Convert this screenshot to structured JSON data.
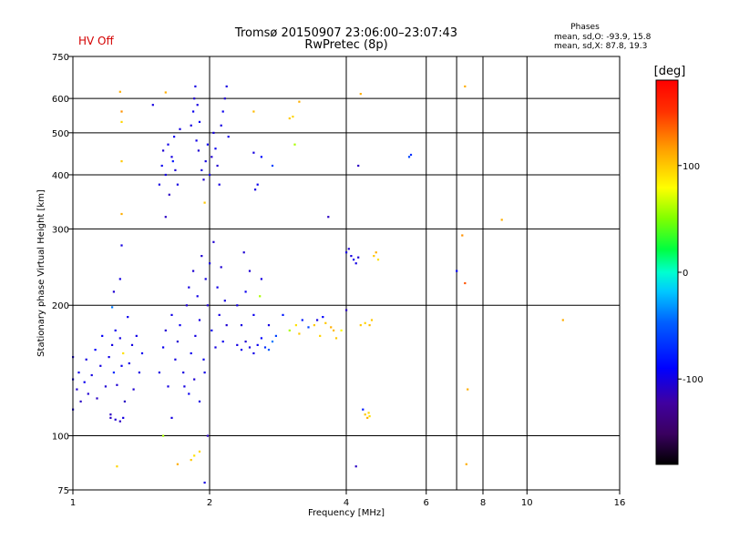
{
  "status": {
    "text": "HV Off",
    "color": "#d40000"
  },
  "header": {
    "title_line1": "Tromsø 20150907 23:06:00–23:07:43",
    "title_line2": "RwPretec (8p)"
  },
  "stats": {
    "heading": "Phases",
    "line_o": "mean, sd,O:  -93.9, 15.8",
    "line_x": "mean, sd,X:  87.8, 19.3"
  },
  "colorbar": {
    "label": "[deg]",
    "range": [
      -180,
      180
    ],
    "ticks": [
      {
        "value": 100,
        "label": "100"
      },
      {
        "value": 0,
        "label": "0"
      },
      {
        "value": -100,
        "label": "-100"
      }
    ]
  },
  "chart_data": {
    "type": "scatter",
    "xlabel": "Frequency [MHz]",
    "ylabel": "Stationary phase Virtual Height [km]",
    "x_scale": "log",
    "y_scale": "log",
    "xlim": [
      1,
      16
    ],
    "ylim": [
      75,
      750
    ],
    "x_ticks": [
      {
        "value": 1,
        "label": "1"
      },
      {
        "value": 2,
        "label": "2"
      },
      {
        "value": 4,
        "label": "4"
      },
      {
        "value": 6,
        "label": "6"
      },
      {
        "value": 8,
        "label": "8"
      },
      {
        "value": 10,
        "label": "10"
      },
      {
        "value": 16,
        "label": "16"
      }
    ],
    "x_grid": [
      2,
      4,
      6,
      7,
      8,
      10
    ],
    "y_ticks": [
      {
        "value": 75,
        "label": "75"
      },
      {
        "value": 100,
        "label": "100"
      },
      {
        "value": 200,
        "label": "200"
      },
      {
        "value": 300,
        "label": "300"
      },
      {
        "value": 400,
        "label": "400"
      },
      {
        "value": 500,
        "label": "500"
      },
      {
        "value": 600,
        "label": "600"
      },
      {
        "value": 750,
        "label": "750"
      }
    ],
    "y_grid": [
      100,
      200,
      300,
      400,
      500,
      600
    ],
    "points": [
      [
        1.0,
        115,
        -100
      ],
      [
        1.0,
        135,
        -100
      ],
      [
        1.0,
        152,
        -100
      ],
      [
        1.02,
        128,
        -105
      ],
      [
        1.03,
        140,
        -98
      ],
      [
        1.04,
        120,
        -110
      ],
      [
        1.06,
        133,
        -95
      ],
      [
        1.07,
        150,
        -100
      ],
      [
        1.08,
        125,
        -105
      ],
      [
        1.1,
        138,
        -100
      ],
      [
        1.12,
        158,
        -90
      ],
      [
        1.13,
        122,
        -110
      ],
      [
        1.15,
        145,
        -100
      ],
      [
        1.16,
        170,
        -92
      ],
      [
        1.18,
        130,
        -105
      ],
      [
        1.2,
        152,
        -98
      ],
      [
        1.21,
        112,
        -110
      ],
      [
        1.22,
        162,
        -100
      ],
      [
        1.23,
        140,
        -70
      ],
      [
        1.24,
        175,
        -95
      ],
      [
        1.25,
        131,
        -105
      ],
      [
        1.27,
        168,
        -100
      ],
      [
        1.28,
        145,
        -95
      ],
      [
        1.29,
        155,
        90
      ],
      [
        1.3,
        120,
        -110
      ],
      [
        1.32,
        188,
        -95
      ],
      [
        1.33,
        147,
        -100
      ],
      [
        1.35,
        162,
        -100
      ],
      [
        1.36,
        128,
        -105
      ],
      [
        1.38,
        170,
        -98
      ],
      [
        1.4,
        140,
        -100
      ],
      [
        1.42,
        155,
        -95
      ],
      [
        1.21,
        110,
        -110
      ],
      [
        1.24,
        109,
        -105
      ],
      [
        1.27,
        108,
        -110
      ],
      [
        1.29,
        110,
        -100
      ],
      [
        1.22,
        198,
        -40
      ],
      [
        1.23,
        215,
        -105
      ],
      [
        1.27,
        230,
        -100
      ],
      [
        1.28,
        275,
        -100
      ],
      [
        1.25,
        85,
        95
      ],
      [
        1.27,
        622,
        110
      ],
      [
        1.28,
        560,
        120
      ],
      [
        1.28,
        530,
        95
      ],
      [
        1.28,
        430,
        100
      ],
      [
        1.28,
        325,
        110
      ],
      [
        1.55,
        380,
        -100
      ],
      [
        1.57,
        420,
        -95
      ],
      [
        1.58,
        455,
        -105
      ],
      [
        1.6,
        400,
        -100
      ],
      [
        1.62,
        470,
        -98
      ],
      [
        1.63,
        360,
        -110
      ],
      [
        1.65,
        440,
        -100
      ],
      [
        1.67,
        490,
        -95
      ],
      [
        1.68,
        410,
        -105
      ],
      [
        1.7,
        380,
        -100
      ],
      [
        1.72,
        510,
        -100
      ],
      [
        1.66,
        430,
        -80
      ],
      [
        1.82,
        520,
        -100
      ],
      [
        1.84,
        560,
        -95
      ],
      [
        1.85,
        600,
        -105
      ],
      [
        1.86,
        640,
        -100
      ],
      [
        1.87,
        480,
        -98
      ],
      [
        1.88,
        580,
        -100
      ],
      [
        1.89,
        455,
        -105
      ],
      [
        1.9,
        530,
        -95
      ],
      [
        1.92,
        410,
        -100
      ],
      [
        1.94,
        390,
        -105
      ],
      [
        1.96,
        430,
        -100
      ],
      [
        1.98,
        470,
        -95
      ],
      [
        2.0,
        400,
        -100
      ],
      [
        2.02,
        440,
        -105
      ],
      [
        2.04,
        500,
        -100
      ],
      [
        2.06,
        460,
        -95
      ],
      [
        2.08,
        420,
        -105
      ],
      [
        2.1,
        380,
        -100
      ],
      [
        2.12,
        520,
        -100
      ],
      [
        2.14,
        560,
        -95
      ],
      [
        2.16,
        600,
        -105
      ],
      [
        2.18,
        640,
        -100
      ],
      [
        2.2,
        490,
        -98
      ],
      [
        2.52,
        370,
        -100
      ],
      [
        2.55,
        380,
        -95
      ],
      [
        2.5,
        450,
        -100
      ],
      [
        2.6,
        440,
        -85
      ],
      [
        2.75,
        420,
        -60
      ],
      [
        3.05,
        545,
        95
      ],
      [
        3.08,
        470,
        60
      ],
      [
        3.15,
        590,
        110
      ],
      [
        3.0,
        540,
        100
      ],
      [
        2.5,
        560,
        105
      ],
      [
        1.95,
        345,
        100
      ],
      [
        1.55,
        140,
        -100
      ],
      [
        1.58,
        160,
        -95
      ],
      [
        1.6,
        175,
        -105
      ],
      [
        1.62,
        130,
        -100
      ],
      [
        1.65,
        190,
        -98
      ],
      [
        1.68,
        150,
        -100
      ],
      [
        1.7,
        165,
        -105
      ],
      [
        1.72,
        180,
        -95
      ],
      [
        1.75,
        140,
        -100
      ],
      [
        1.78,
        200,
        -105
      ],
      [
        1.8,
        220,
        -100
      ],
      [
        1.82,
        155,
        -95
      ],
      [
        1.84,
        240,
        -105
      ],
      [
        1.86,
        170,
        -100
      ],
      [
        1.88,
        210,
        -98
      ],
      [
        1.9,
        185,
        -100
      ],
      [
        1.92,
        260,
        -105
      ],
      [
        1.94,
        150,
        -95
      ],
      [
        1.96,
        230,
        -100
      ],
      [
        1.98,
        200,
        -105
      ],
      [
        2.0,
        250,
        -100
      ],
      [
        2.02,
        175,
        -95
      ],
      [
        2.04,
        280,
        -105
      ],
      [
        2.06,
        160,
        -100
      ],
      [
        2.08,
        220,
        -98
      ],
      [
        2.1,
        190,
        -100
      ],
      [
        2.12,
        245,
        -105
      ],
      [
        2.14,
        165,
        -95
      ],
      [
        2.16,
        205,
        -100
      ],
      [
        2.18,
        180,
        -105
      ],
      [
        1.76,
        130,
        -100
      ],
      [
        1.8,
        125,
        -95
      ],
      [
        1.85,
        135,
        -105
      ],
      [
        1.9,
        120,
        -100
      ],
      [
        1.95,
        140,
        -98
      ],
      [
        2.3,
        162,
        -100
      ],
      [
        2.35,
        158,
        -95
      ],
      [
        2.4,
        165,
        -105
      ],
      [
        2.45,
        160,
        -100
      ],
      [
        2.5,
        155,
        -98
      ],
      [
        2.55,
        162,
        -95
      ],
      [
        2.6,
        168,
        -90
      ],
      [
        2.65,
        160,
        -70
      ],
      [
        2.7,
        158,
        -50
      ],
      [
        2.75,
        165,
        -40
      ],
      [
        2.8,
        170,
        -60
      ],
      [
        2.3,
        200,
        -100
      ],
      [
        2.4,
        215,
        -95
      ],
      [
        2.45,
        240,
        -105
      ],
      [
        2.6,
        230,
        -100
      ],
      [
        2.58,
        210,
        60
      ],
      [
        2.35,
        180,
        -100
      ],
      [
        2.38,
        265,
        -105
      ],
      [
        2.5,
        190,
        -95
      ],
      [
        2.7,
        180,
        -100
      ],
      [
        2.9,
        190,
        -80
      ],
      [
        3.0,
        175,
        60
      ],
      [
        3.1,
        180,
        90
      ],
      [
        3.15,
        172,
        100
      ],
      [
        3.2,
        185,
        -80
      ],
      [
        3.3,
        178,
        -60
      ],
      [
        3.4,
        180,
        100
      ],
      [
        3.45,
        185,
        -100
      ],
      [
        3.5,
        170,
        95
      ],
      [
        3.55,
        188,
        -90
      ],
      [
        3.6,
        182,
        100
      ],
      [
        3.7,
        178,
        110
      ],
      [
        3.75,
        175,
        105
      ],
      [
        3.8,
        168,
        100
      ],
      [
        3.9,
        175,
        80
      ],
      [
        4.0,
        265,
        -100
      ],
      [
        4.05,
        270,
        -105
      ],
      [
        4.1,
        260,
        -100
      ],
      [
        4.15,
        255,
        -95
      ],
      [
        4.2,
        250,
        -100
      ],
      [
        4.25,
        258,
        -105
      ],
      [
        4.0,
        195,
        -110
      ],
      [
        4.6,
        260,
        100
      ],
      [
        4.65,
        265,
        110
      ],
      [
        4.7,
        255,
        90
      ],
      [
        4.3,
        180,
        100
      ],
      [
        4.4,
        182,
        95
      ],
      [
        4.5,
        180,
        105
      ],
      [
        4.55,
        185,
        100
      ],
      [
        4.35,
        115,
        -80
      ],
      [
        4.4,
        112,
        100
      ],
      [
        4.45,
        110,
        110
      ],
      [
        4.48,
        113,
        95
      ],
      [
        4.5,
        111,
        90
      ],
      [
        4.2,
        85,
        -110
      ],
      [
        5.5,
        440,
        -60
      ],
      [
        5.55,
        445,
        -70
      ],
      [
        3.65,
        320,
        -110
      ],
      [
        4.25,
        420,
        -110
      ],
      [
        4.3,
        615,
        110
      ],
      [
        7.0,
        240,
        -90
      ],
      [
        7.2,
        290,
        120
      ],
      [
        7.3,
        225,
        140
      ],
      [
        7.4,
        128,
        110
      ],
      [
        7.35,
        86,
        110
      ],
      [
        7.3,
        640,
        110
      ],
      [
        8.8,
        315,
        110
      ],
      [
        12.0,
        185,
        110
      ],
      [
        1.5,
        580,
        -100
      ],
      [
        1.6,
        620,
        110
      ],
      [
        1.58,
        100,
        60
      ],
      [
        1.7,
        86,
        110
      ],
      [
        1.82,
        88,
        100
      ],
      [
        1.85,
        90,
        90
      ],
      [
        1.9,
        92,
        95
      ],
      [
        1.95,
        78,
        -100
      ],
      [
        1.98,
        100,
        -110
      ],
      [
        1.65,
        110,
        -100
      ],
      [
        1.6,
        320,
        -110
      ]
    ]
  }
}
